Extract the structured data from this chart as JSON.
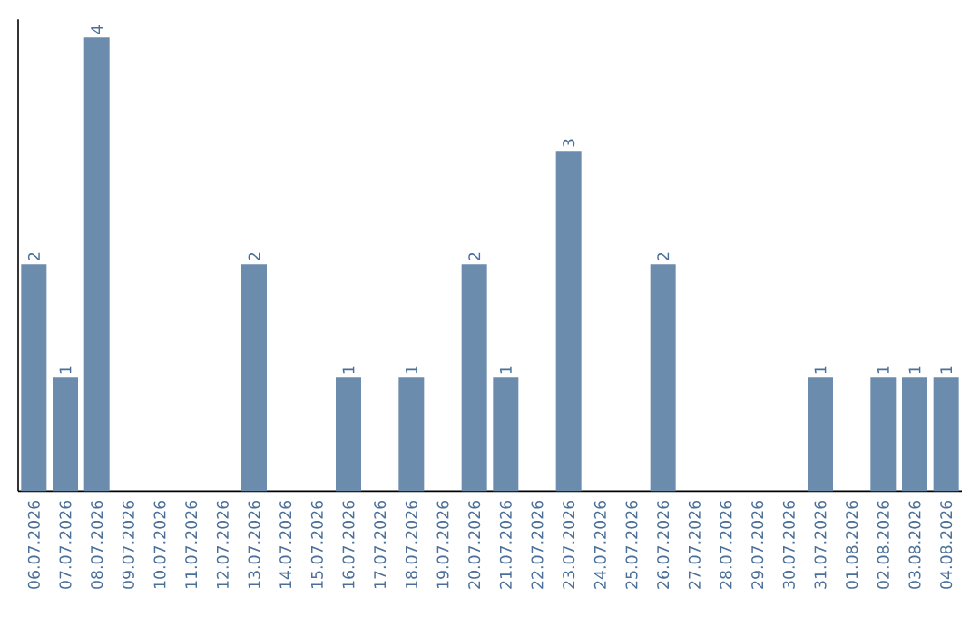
{
  "chart_data": {
    "type": "bar",
    "categories": [
      "06.07.2026",
      "07.07.2026",
      "08.07.2026",
      "09.07.2026",
      "10.07.2026",
      "11.07.2026",
      "12.07.2026",
      "13.07.2026",
      "14.07.2026",
      "15.07.2026",
      "16.07.2026",
      "17.07.2026",
      "18.07.2026",
      "19.07.2026",
      "20.07.2026",
      "21.07.2026",
      "22.07.2026",
      "23.07.2026",
      "24.07.2026",
      "25.07.2026",
      "26.07.2026",
      "27.07.2026",
      "28.07.2026",
      "29.07.2026",
      "30.07.2026",
      "31.07.2026",
      "01.08.2026",
      "02.08.2026",
      "03.08.2026",
      "04.08.2026"
    ],
    "values": [
      2,
      1,
      4,
      0,
      0,
      0,
      0,
      2,
      0,
      0,
      1,
      0,
      1,
      0,
      2,
      1,
      0,
      3,
      0,
      0,
      2,
      0,
      0,
      0,
      0,
      1,
      0,
      1,
      1,
      1
    ],
    "value_labels": [
      "2",
      "1",
      "4",
      null,
      null,
      null,
      null,
      "2",
      null,
      null,
      "1",
      null,
      "1",
      null,
      "2",
      "1",
      null,
      "3",
      null,
      null,
      "2",
      null,
      null,
      null,
      null,
      "1",
      null,
      "1",
      "1",
      "1"
    ],
    "color": "#6b8cad",
    "ylim": [
      0,
      4.16
    ],
    "tick_labels": "x"
  }
}
